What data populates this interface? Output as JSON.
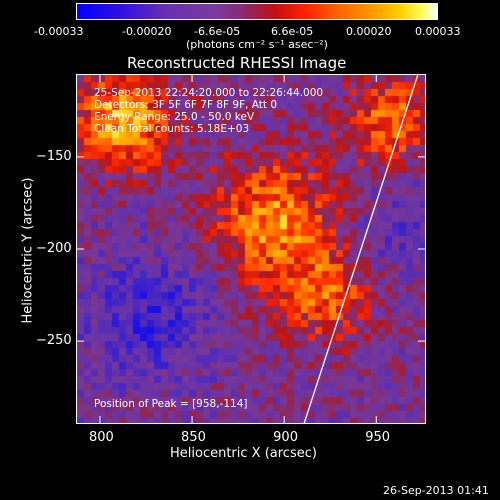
{
  "colorbar": {
    "ticks": [
      "-0.00033",
      "-0.00020",
      "-6.6e-05",
      "6.6e-05",
      "0.00020",
      "0.00033"
    ],
    "unit_label": "(photons cm⁻² s⁻¹ asec⁻²)"
  },
  "chart_data": {
    "type": "heatmap",
    "title": "Reconstructed RHESSI Image",
    "xlabel": "Heliocentric X (arcsec)",
    "ylabel": "Heliocentric Y (arcsec)",
    "xlim": [
      787,
      977
    ],
    "ylim": [
      -295,
      -105
    ],
    "x_ticks": [
      800,
      850,
      900,
      950
    ],
    "y_ticks": [
      -150,
      -200,
      -250
    ],
    "x_tick_labels": [
      "800",
      "850",
      "900",
      "950"
    ],
    "y_tick_labels": [
      "−150",
      "−200",
      "−250"
    ],
    "color_range": [
      -0.00033,
      0.00033
    ],
    "annotations": [
      "25-Sep-2013 22:24:20.000 to 22:26:44.000",
      "Detectors: 3F 5F 6F 7F 8F 9F, Att 0",
      "Energy Range: 25.0 - 50.0 keV",
      "Clean    Total counts: 5.18E+03"
    ],
    "peak_label": "Position of Peak = [958,-114]",
    "limb_line": {
      "x": [
        910,
        972
      ],
      "y": [
        -295,
        -105
      ]
    }
  },
  "footer": {
    "timestamp": "26-Sep-2013 01:41"
  }
}
